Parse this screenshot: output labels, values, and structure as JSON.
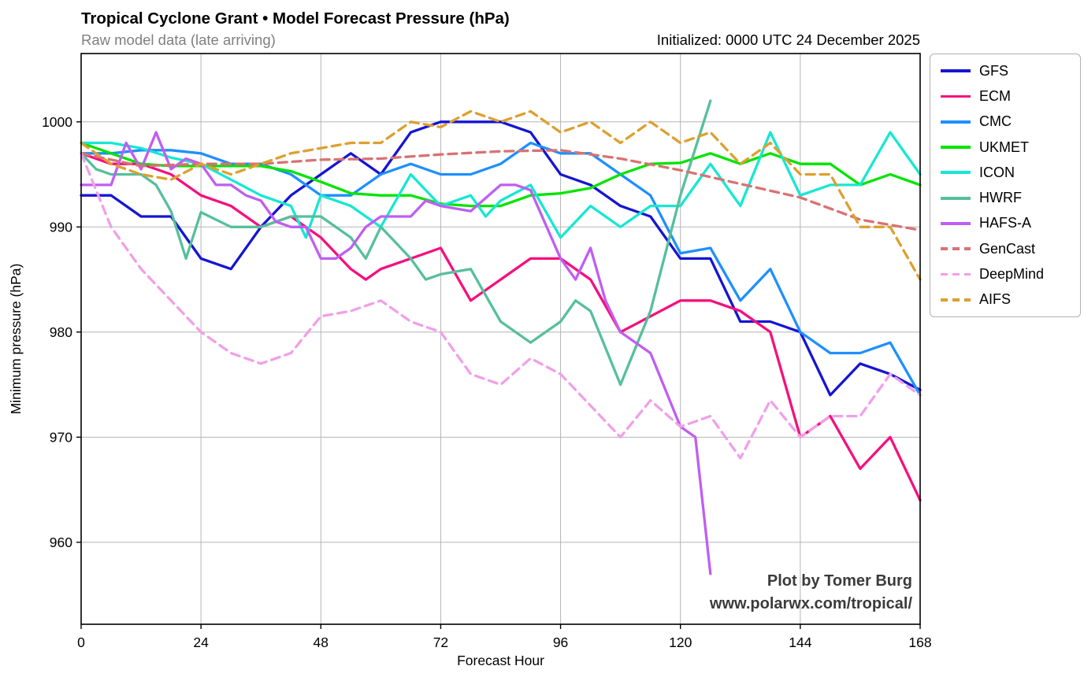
{
  "header": {
    "title": "Tropical Cyclone Grant • Model Forecast Pressure (hPa)",
    "subtitle": "Raw model data (late arriving)",
    "initialized": "Initialized: 0000 UTC 24 December 2025"
  },
  "annotation": {
    "line1": "Plot by Tomer Burg",
    "line2": "www.polarwx.com/tropical/"
  },
  "colors": {
    "grid": "#b5b5b5",
    "spine": "#000000",
    "subtitle_gray": "#7f7f7f",
    "annotation_gray": "#3b3b3b"
  },
  "chart_data": {
    "type": "line",
    "title": "Tropical Cyclone Grant • Model Forecast Pressure (hPa)",
    "xlabel": "Forecast Hour",
    "ylabel": "Minimum pressure (hPa)",
    "xlim": [
      0,
      168
    ],
    "ylim": [
      952.2,
      1006.5
    ],
    "x_ticks": [
      0,
      24,
      48,
      72,
      96,
      120,
      144,
      168
    ],
    "y_ticks": [
      1000,
      990,
      980,
      970,
      960
    ],
    "grid": true,
    "legend_position": "outside-right",
    "series": [
      {
        "name": "GFS",
        "color": "#1515d3",
        "style": "solid",
        "points": [
          [
            0,
            993
          ],
          [
            6,
            993
          ],
          [
            12,
            991
          ],
          [
            18,
            991
          ],
          [
            24,
            987
          ],
          [
            30,
            986
          ],
          [
            36,
            990
          ],
          [
            42,
            993
          ],
          [
            48,
            995
          ],
          [
            54,
            997
          ],
          [
            60,
            995
          ],
          [
            66,
            999
          ],
          [
            72,
            1000
          ],
          [
            78,
            1000
          ],
          [
            84,
            1000
          ],
          [
            90,
            999
          ],
          [
            96,
            995
          ],
          [
            102,
            994
          ],
          [
            108,
            992
          ],
          [
            114,
            991
          ],
          [
            120,
            987
          ],
          [
            126,
            987
          ],
          [
            132,
            981
          ],
          [
            138,
            981
          ],
          [
            144,
            980
          ],
          [
            150,
            974
          ],
          [
            156,
            977
          ],
          [
            162,
            976
          ],
          [
            168,
            974.5
          ]
        ]
      },
      {
        "name": "ECM",
        "color": "#f5107e",
        "style": "solid",
        "points": [
          [
            0,
            997
          ],
          [
            6,
            996
          ],
          [
            12,
            996
          ],
          [
            18,
            995
          ],
          [
            24,
            993
          ],
          [
            30,
            992
          ],
          [
            36,
            990
          ],
          [
            42,
            991
          ],
          [
            48,
            989
          ],
          [
            54,
            986
          ],
          [
            57,
            985
          ],
          [
            60,
            986
          ],
          [
            66,
            987
          ],
          [
            72,
            988
          ],
          [
            78,
            983
          ],
          [
            84,
            985
          ],
          [
            90,
            987
          ],
          [
            96,
            987
          ],
          [
            102,
            985
          ],
          [
            108,
            980
          ],
          [
            114,
            981.5
          ],
          [
            120,
            983
          ],
          [
            126,
            983
          ],
          [
            132,
            982
          ],
          [
            138,
            980
          ],
          [
            144,
            970
          ],
          [
            150,
            972
          ],
          [
            156,
            967
          ],
          [
            162,
            970
          ],
          [
            168,
            964
          ]
        ]
      },
      {
        "name": "CMC",
        "color": "#1e90ff",
        "style": "solid",
        "points": [
          [
            0,
            997
          ],
          [
            6,
            997
          ],
          [
            12,
            997.3
          ],
          [
            18,
            997.3
          ],
          [
            24,
            997
          ],
          [
            30,
            996
          ],
          [
            36,
            996
          ],
          [
            42,
            995
          ],
          [
            48,
            993
          ],
          [
            54,
            993
          ],
          [
            60,
            995
          ],
          [
            66,
            996
          ],
          [
            72,
            995
          ],
          [
            78,
            995
          ],
          [
            84,
            996
          ],
          [
            90,
            998
          ],
          [
            96,
            997
          ],
          [
            102,
            997
          ],
          [
            108,
            995
          ],
          [
            114,
            993
          ],
          [
            120,
            987.5
          ],
          [
            126,
            988
          ],
          [
            132,
            983
          ],
          [
            138,
            986
          ],
          [
            144,
            980
          ],
          [
            150,
            978
          ],
          [
            156,
            978
          ],
          [
            162,
            979
          ],
          [
            168,
            974
          ]
        ]
      },
      {
        "name": "UKMET",
        "color": "#00e400",
        "style": "solid",
        "points": [
          [
            0,
            998
          ],
          [
            6,
            997
          ],
          [
            12,
            996
          ],
          [
            18,
            995.8
          ],
          [
            24,
            995.8
          ],
          [
            30,
            995.8
          ],
          [
            36,
            995.8
          ],
          [
            42,
            995.3
          ],
          [
            48,
            994.3
          ],
          [
            54,
            993.2
          ],
          [
            60,
            993
          ],
          [
            66,
            993
          ],
          [
            72,
            992.2
          ],
          [
            78,
            992
          ],
          [
            84,
            992
          ],
          [
            90,
            993
          ],
          [
            96,
            993.2
          ],
          [
            102,
            993.7
          ],
          [
            108,
            995
          ],
          [
            114,
            996
          ],
          [
            120,
            996.1
          ],
          [
            126,
            997
          ],
          [
            132,
            996
          ],
          [
            138,
            997
          ],
          [
            144,
            996
          ],
          [
            150,
            996
          ],
          [
            156,
            994
          ],
          [
            162,
            995
          ],
          [
            168,
            994
          ]
        ]
      },
      {
        "name": "ICON",
        "color": "#17e7d2",
        "style": "solid",
        "points": [
          [
            0,
            998
          ],
          [
            6,
            998
          ],
          [
            12,
            997.5
          ],
          [
            18,
            996.6
          ],
          [
            24,
            996
          ],
          [
            30,
            994.5
          ],
          [
            36,
            993
          ],
          [
            42,
            992
          ],
          [
            45,
            989
          ],
          [
            48,
            993
          ],
          [
            54,
            992
          ],
          [
            60,
            990
          ],
          [
            66,
            995
          ],
          [
            72,
            992
          ],
          [
            78,
            993
          ],
          [
            81,
            991
          ],
          [
            84,
            992.5
          ],
          [
            90,
            994
          ],
          [
            96,
            989
          ],
          [
            102,
            992
          ],
          [
            108,
            990
          ],
          [
            114,
            992
          ],
          [
            120,
            992
          ],
          [
            126,
            996
          ],
          [
            132,
            992
          ],
          [
            138,
            999
          ],
          [
            144,
            993
          ],
          [
            150,
            994
          ],
          [
            156,
            994
          ],
          [
            162,
            999
          ],
          [
            168,
            995
          ]
        ]
      },
      {
        "name": "HWRF",
        "color": "#56bf9d",
        "style": "solid",
        "points": [
          [
            0,
            997
          ],
          [
            3,
            995.5
          ],
          [
            6,
            995
          ],
          [
            12,
            995
          ],
          [
            15,
            994
          ],
          [
            18,
            991.5
          ],
          [
            21,
            987
          ],
          [
            24,
            991.4
          ],
          [
            30,
            990
          ],
          [
            36,
            990
          ],
          [
            42,
            991
          ],
          [
            48,
            991
          ],
          [
            54,
            989
          ],
          [
            57,
            987
          ],
          [
            60,
            990
          ],
          [
            63,
            988.5
          ],
          [
            66,
            987
          ],
          [
            69,
            985
          ],
          [
            72,
            985.5
          ],
          [
            78,
            986
          ],
          [
            84,
            981
          ],
          [
            90,
            979
          ],
          [
            96,
            981
          ],
          [
            99,
            983
          ],
          [
            102,
            982
          ],
          [
            108,
            975
          ],
          [
            114,
            982
          ],
          [
            120,
            993
          ],
          [
            126,
            1002
          ]
        ]
      },
      {
        "name": "HAFS-A",
        "color": "#bf5ef2",
        "style": "solid",
        "points": [
          [
            0,
            994
          ],
          [
            6,
            994
          ],
          [
            9,
            998
          ],
          [
            12,
            995.5
          ],
          [
            15,
            999
          ],
          [
            18,
            995.5
          ],
          [
            21,
            996.5
          ],
          [
            24,
            996
          ],
          [
            27,
            994
          ],
          [
            30,
            994
          ],
          [
            33,
            993
          ],
          [
            36,
            992.5
          ],
          [
            39,
            990.5
          ],
          [
            42,
            990
          ],
          [
            45,
            990
          ],
          [
            48,
            987
          ],
          [
            51,
            987
          ],
          [
            54,
            988
          ],
          [
            57,
            990
          ],
          [
            60,
            991
          ],
          [
            63,
            991
          ],
          [
            66,
            991
          ],
          [
            69,
            992.5
          ],
          [
            72,
            992
          ],
          [
            78,
            991.5
          ],
          [
            84,
            994
          ],
          [
            87,
            994
          ],
          [
            90,
            993.5
          ],
          [
            96,
            987
          ],
          [
            99,
            985
          ],
          [
            102,
            988
          ],
          [
            105,
            983
          ],
          [
            108,
            980
          ],
          [
            114,
            978
          ],
          [
            120,
            971
          ],
          [
            123,
            970
          ],
          [
            126,
            957
          ]
        ]
      },
      {
        "name": "GenCast",
        "color": "#d97272",
        "style": "dashed",
        "points": [
          [
            0,
            997
          ],
          [
            12,
            995.8
          ],
          [
            24,
            996
          ],
          [
            36,
            996
          ],
          [
            48,
            996.4
          ],
          [
            60,
            996.5
          ],
          [
            72,
            996.9
          ],
          [
            84,
            997.2
          ],
          [
            96,
            997.3
          ],
          [
            108,
            996.5
          ],
          [
            120,
            995.4
          ],
          [
            132,
            994.1
          ],
          [
            144,
            992.8
          ],
          [
            156,
            990.7
          ],
          [
            168,
            989.7
          ]
        ]
      },
      {
        "name": "DeepMind",
        "color": "#f0a0e8",
        "style": "dashed",
        "points": [
          [
            0,
            997
          ],
          [
            6,
            990
          ],
          [
            12,
            986
          ],
          [
            18,
            983
          ],
          [
            24,
            980
          ],
          [
            30,
            978
          ],
          [
            36,
            977
          ],
          [
            42,
            978
          ],
          [
            48,
            981.5
          ],
          [
            54,
            982
          ],
          [
            60,
            983
          ],
          [
            66,
            981
          ],
          [
            72,
            980
          ],
          [
            78,
            976
          ],
          [
            84,
            975
          ],
          [
            90,
            977.5
          ],
          [
            96,
            976
          ],
          [
            102,
            973
          ],
          [
            108,
            970
          ],
          [
            114,
            973.5
          ],
          [
            120,
            971
          ],
          [
            126,
            972
          ],
          [
            132,
            968
          ],
          [
            138,
            973.5
          ],
          [
            144,
            970
          ],
          [
            150,
            972
          ],
          [
            156,
            972
          ],
          [
            162,
            976
          ],
          [
            168,
            974
          ]
        ]
      },
      {
        "name": "AIFS",
        "color": "#dda02f",
        "style": "dashed",
        "points": [
          [
            0,
            998
          ],
          [
            6,
            996
          ],
          [
            12,
            995
          ],
          [
            18,
            994.5
          ],
          [
            24,
            996
          ],
          [
            30,
            995
          ],
          [
            36,
            996
          ],
          [
            42,
            997
          ],
          [
            48,
            997.5
          ],
          [
            54,
            998
          ],
          [
            60,
            998
          ],
          [
            66,
            1000
          ],
          [
            72,
            999.5
          ],
          [
            78,
            1001
          ],
          [
            84,
            1000
          ],
          [
            90,
            1001
          ],
          [
            96,
            999
          ],
          [
            102,
            1000
          ],
          [
            108,
            998
          ],
          [
            114,
            1000
          ],
          [
            120,
            998
          ],
          [
            126,
            999
          ],
          [
            132,
            996
          ],
          [
            138,
            998
          ],
          [
            144,
            995
          ],
          [
            150,
            995
          ],
          [
            156,
            990
          ],
          [
            162,
            990
          ],
          [
            168,
            985
          ]
        ]
      }
    ]
  }
}
